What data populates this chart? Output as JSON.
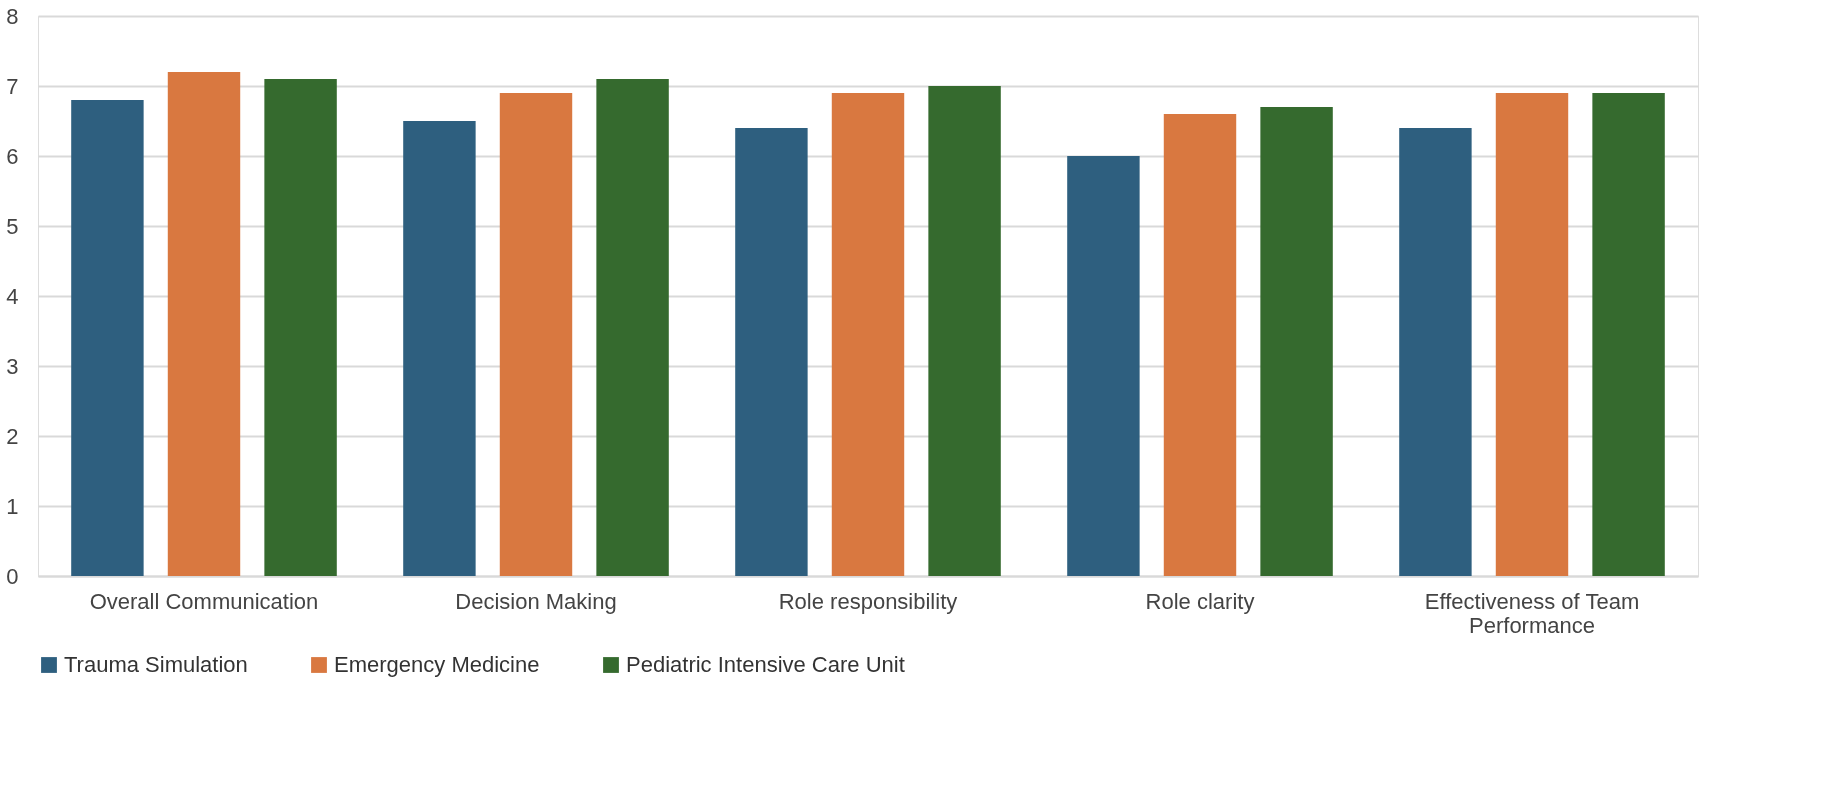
{
  "chart_data": {
    "type": "bar",
    "categories": [
      "Overall Communication",
      "Decision Making",
      "Role responsibility",
      "Role clarity",
      "Effectiveness of Team Performance"
    ],
    "series": [
      {
        "name": "Trauma Simulation",
        "color": "#2e5f7f",
        "values": [
          6.8,
          6.5,
          6.4,
          6.0,
          6.4
        ]
      },
      {
        "name": "Emergency Medicine",
        "color": "#d97840",
        "values": [
          7.2,
          6.9,
          6.9,
          6.6,
          6.9
        ]
      },
      {
        "name": "Pediatric Intensive Care Unit",
        "color": "#356a2e",
        "values": [
          7.1,
          7.1,
          7.0,
          6.7,
          6.9
        ]
      }
    ],
    "ylim": [
      0,
      8
    ],
    "yticks": [
      0,
      1,
      2,
      3,
      4,
      5,
      6,
      7,
      8
    ],
    "grid": "y",
    "legend": "bottom"
  }
}
